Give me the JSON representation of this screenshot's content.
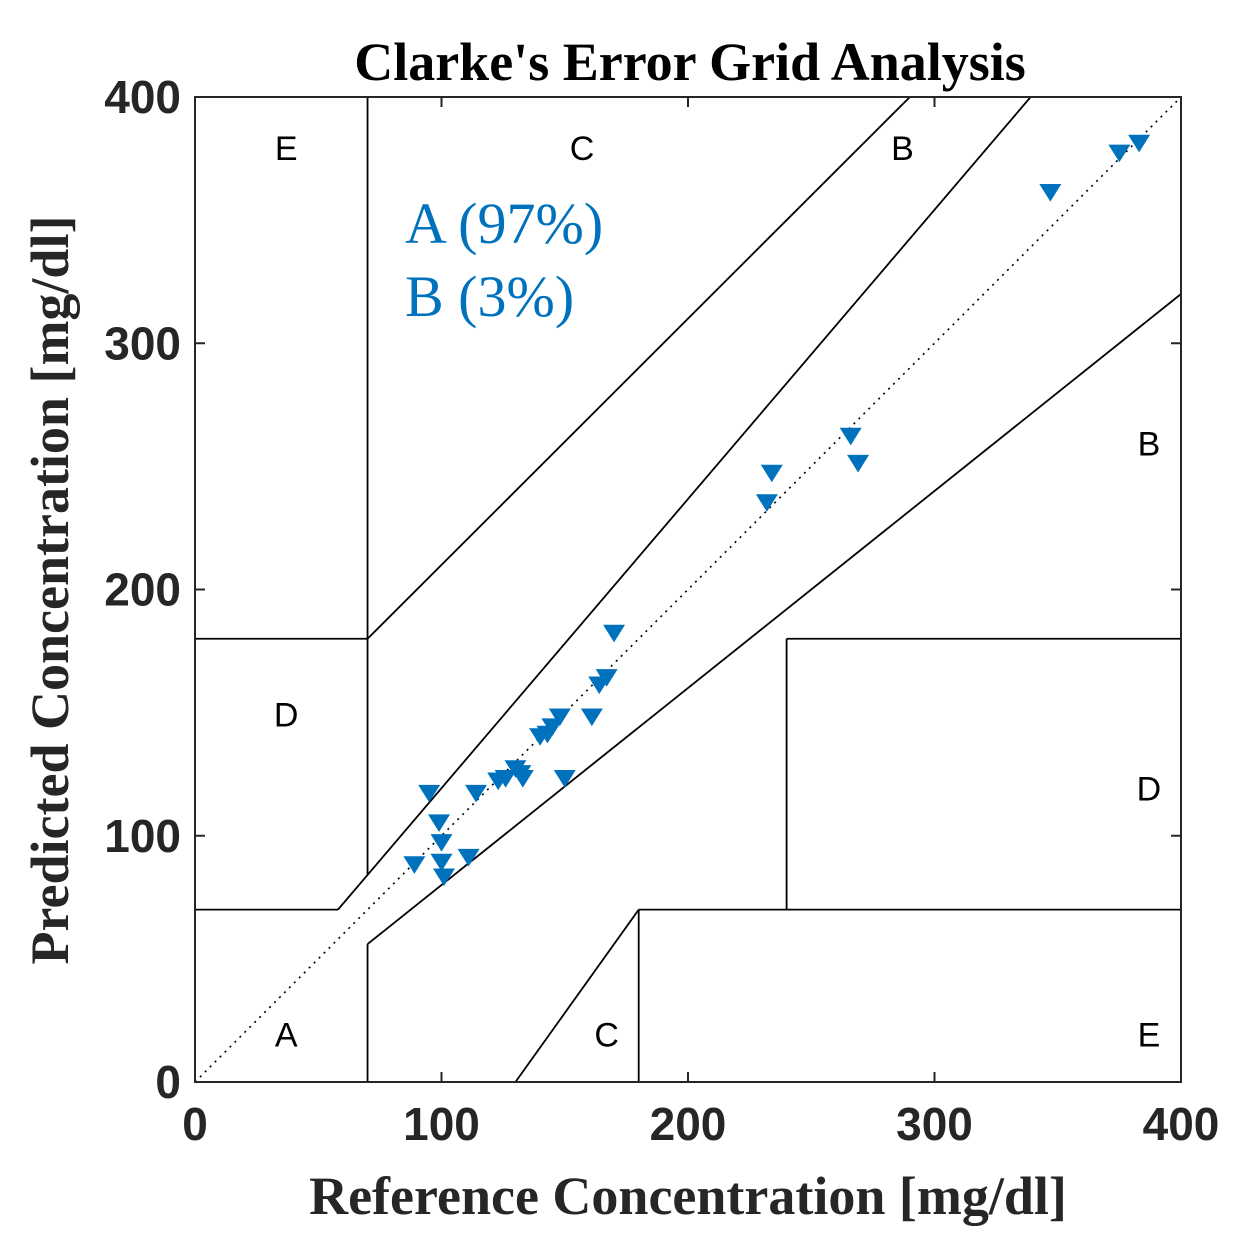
{
  "chart_data": {
    "type": "scatter",
    "title": "Clarke's Error Grid Analysis",
    "xlabel": "Reference Concentration [mg/dl]",
    "ylabel": "Predicted Concentration [mg/dl]",
    "xlim": [
      0,
      400
    ],
    "ylim": [
      0,
      400
    ],
    "xticks": [
      "0",
      "100",
      "200",
      "300",
      "400"
    ],
    "yticks": [
      "0",
      "100",
      "200",
      "300",
      "400"
    ],
    "grid": false,
    "marker": "downward-triangle",
    "marker_color": "#0072BD",
    "annotations": [
      "A (97%)",
      "B (3%)"
    ],
    "zones": [
      {
        "label": "E",
        "x": 37,
        "y": 378
      },
      {
        "label": "C",
        "x": 157,
        "y": 378
      },
      {
        "label": "B",
        "x": 287,
        "y": 378
      },
      {
        "label": "B",
        "x": 387,
        "y": 258
      },
      {
        "label": "D",
        "x": 37,
        "y": 148
      },
      {
        "label": "D",
        "x": 387,
        "y": 118
      },
      {
        "label": "A",
        "x": 37,
        "y": 18
      },
      {
        "label": "C",
        "x": 167,
        "y": 18
      },
      {
        "label": "E",
        "x": 387,
        "y": 18
      }
    ],
    "boundaries": [
      [
        [
          70,
          400
        ],
        [
          70,
          180
        ]
      ],
      [
        [
          0,
          180
        ],
        [
          70,
          180
        ]
      ],
      [
        [
          70,
          180
        ],
        [
          290,
          400
        ]
      ],
      [
        [
          70,
          84
        ],
        [
          70,
          180
        ]
      ],
      [
        [
          0,
          70
        ],
        [
          58,
          70
        ]
      ],
      [
        [
          58,
          70
        ],
        [
          339,
          400
        ]
      ],
      [
        [
          70,
          56
        ],
        [
          400,
          320
        ]
      ],
      [
        [
          70,
          0
        ],
        [
          70,
          56
        ]
      ],
      [
        [
          130,
          0
        ],
        [
          180,
          70
        ]
      ],
      [
        [
          180,
          0
        ],
        [
          180,
          70
        ]
      ],
      [
        [
          180,
          70
        ],
        [
          400,
          70
        ]
      ],
      [
        [
          240,
          70
        ],
        [
          240,
          180
        ]
      ],
      [
        [
          240,
          180
        ],
        [
          400,
          180
        ]
      ]
    ],
    "reference_line": [
      [
        0,
        0
      ],
      [
        400,
        400
      ]
    ],
    "series": [
      {
        "x": [
          95,
          99,
          100,
          100,
          101,
          89,
          111,
          114,
          123,
          126,
          130,
          132,
          133,
          140,
          143,
          145,
          148,
          150,
          161,
          164,
          167,
          170,
          232,
          234,
          266,
          269,
          347,
          375,
          383
        ],
        "y": [
          118,
          106,
          98,
          90,
          84,
          89,
          92,
          118,
          123,
          124,
          128,
          126,
          124,
          141,
          142,
          145,
          149,
          124,
          149,
          162,
          165,
          183,
          236,
          248,
          263,
          252,
          362,
          378,
          382
        ]
      }
    ]
  }
}
